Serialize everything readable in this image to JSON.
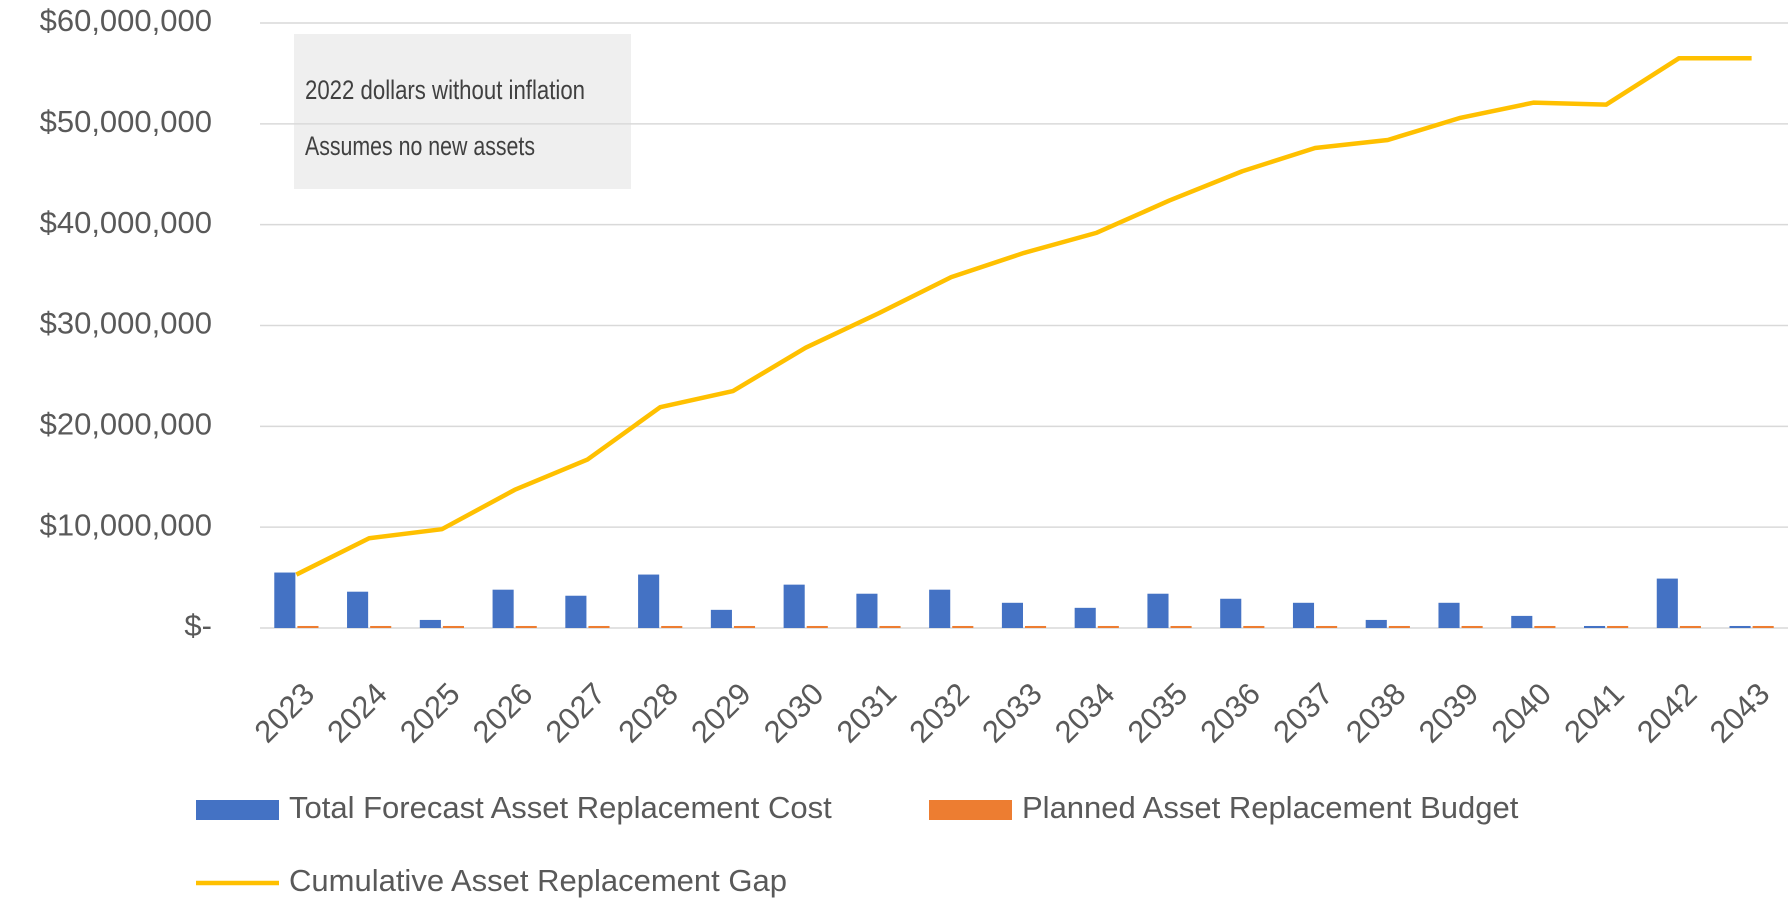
{
  "chart_data": {
    "type": "bar",
    "annotations": [
      "2022 dollars without inflation",
      "Assumes no new assets"
    ],
    "categories": [
      "2023",
      "2024",
      "2025",
      "2026",
      "2027",
      "2028",
      "2029",
      "2030",
      "2031",
      "2032",
      "2033",
      "2034",
      "2035",
      "2036",
      "2037",
      "2038",
      "2039",
      "2040",
      "2041",
      "2042",
      "2043"
    ],
    "series": [
      {
        "name": "Total Forecast Asset Replacement Cost",
        "color": "#4472c4",
        "type": "bar",
        "values": [
          5500000,
          3600000,
          800000,
          3800000,
          3200000,
          5300000,
          1800000,
          4300000,
          3400000,
          3800000,
          2500000,
          2000000,
          3400000,
          2900000,
          2500000,
          800000,
          2500000,
          1200000,
          200000,
          4900000,
          200000
        ]
      },
      {
        "name": "Planned Asset Replacement Budget",
        "color": "#ed7d31",
        "type": "bar",
        "values": [
          200000,
          200000,
          200000,
          200000,
          200000,
          200000,
          200000,
          200000,
          200000,
          200000,
          200000,
          200000,
          200000,
          200000,
          200000,
          200000,
          200000,
          200000,
          200000,
          200000,
          200000
        ]
      },
      {
        "name": "Cumulative Asset Replacement Gap",
        "color": "#ffc000",
        "type": "line",
        "values": [
          5300000,
          8900000,
          9800000,
          13700000,
          16700000,
          21900000,
          23500000,
          27800000,
          31200000,
          34800000,
          37200000,
          39200000,
          42400000,
          45300000,
          47600000,
          48400000,
          50600000,
          52100000,
          51900000,
          56500000,
          56500000
        ]
      }
    ],
    "ylim": [
      0,
      60000000
    ],
    "yticks": [
      {
        "value": 0,
        "label": "$-"
      },
      {
        "value": 10000000,
        "label": "$10,000,000"
      },
      {
        "value": 20000000,
        "label": "$20,000,000"
      },
      {
        "value": 30000000,
        "label": "$30,000,000"
      },
      {
        "value": 40000000,
        "label": "$40,000,000"
      },
      {
        "value": 50000000,
        "label": "$50,000,000"
      },
      {
        "value": 60000000,
        "label": "$60,000,000"
      }
    ],
    "grid": true,
    "legend": "bottom"
  }
}
